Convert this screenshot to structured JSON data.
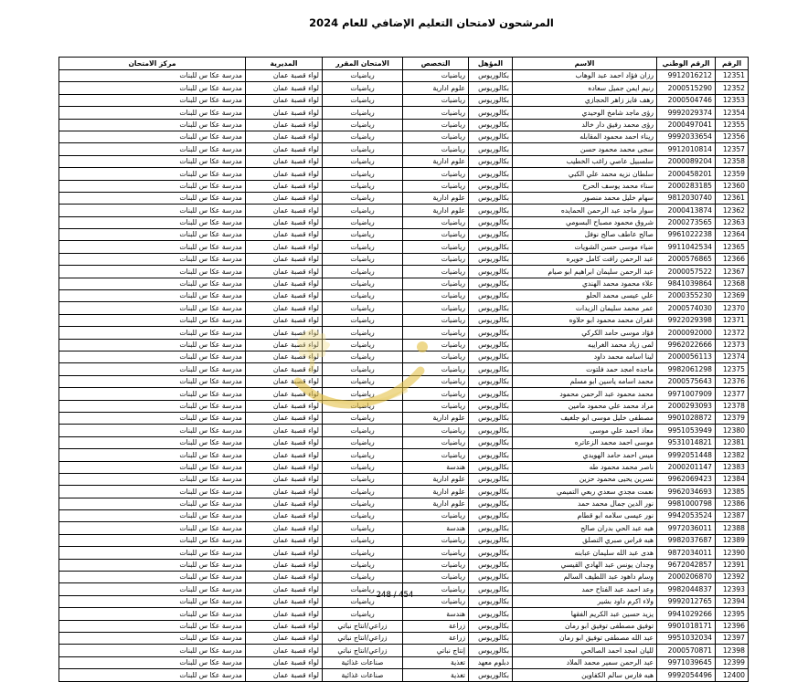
{
  "page": {
    "title": "المرشحون لامتحان التعليم الإضافي للعام 2024",
    "page_number": "248 / 454"
  },
  "watermark": {
    "name": "ammon-stamp-watermark",
    "color": "#e3c042"
  },
  "table": {
    "columns": [
      {
        "key": "serial",
        "label": "الرقم"
      },
      {
        "key": "national_id",
        "label": "الرقم الوطني"
      },
      {
        "key": "name",
        "label": "الاسم"
      },
      {
        "key": "qualification",
        "label": "المؤهل"
      },
      {
        "key": "specialization",
        "label": "التخصص"
      },
      {
        "key": "scheduled_exam",
        "label": "الامتحان المقرر"
      },
      {
        "key": "directorate",
        "label": "المديرية"
      },
      {
        "key": "exam_center",
        "label": "مركز الامتحان"
      }
    ],
    "rows": [
      [
        "12351",
        "9912016212",
        "رزان فؤاد احمد عبد الوهاب",
        "بكالوريوس",
        "رياضيات",
        "رياضيات",
        "لواء قصبة عمان",
        "مدرسة عكا س للبنات"
      ],
      [
        "12352",
        "2000515290",
        "رنيم ايمن جميل سعاده",
        "بكالوريوس",
        "علوم ادارية",
        "رياضيات",
        "لواء قصبة عمان",
        "مدرسة عكا س للبنات"
      ],
      [
        "12353",
        "2000504746",
        "رهف فايز زاهر الحجازي",
        "بكالوريوس",
        "رياضيات",
        "رياضيات",
        "لواء قصبة عمان",
        "مدرسة عكا س للبنات"
      ],
      [
        "12354",
        "9992029374",
        "رؤى ماجد شامخ الوحيدي",
        "بكالوريوس",
        "رياضيات",
        "رياضيات",
        "لواء قصبة عمان",
        "مدرسة عكا س للبنات"
      ],
      [
        "12355",
        "2000497041",
        "رؤى محمد رفيق دار خالد",
        "بكالوريوس",
        "رياضيات",
        "رياضيات",
        "لواء قصبة عمان",
        "مدرسة عكا س للبنات"
      ],
      [
        "12356",
        "9992033654",
        "ريناء احمد محمود المقابله",
        "بكالوريوس",
        "رياضيات",
        "رياضيات",
        "لواء قصبة عمان",
        "مدرسة عكا س للبنات"
      ],
      [
        "12357",
        "9912010814",
        "سجى محمد محمود حسن",
        "بكالوريوس",
        "رياضيات",
        "رياضيات",
        "لواء قصبة عمان",
        "مدرسة عكا س للبنات"
      ],
      [
        "12358",
        "2000089204",
        "سلسبيل عاصي راغب الخطيب",
        "بكالوريوس",
        "علوم ادارية",
        "رياضيات",
        "لواء قصبة عمان",
        "مدرسة عكا س للبنات"
      ],
      [
        "12359",
        "2000458201",
        "سلطان نزيه محمد علي الكبي",
        "بكالوريوس",
        "رياضيات",
        "رياضيات",
        "لواء قصبة عمان",
        "مدرسة عكا س للبنات"
      ],
      [
        "12360",
        "2000283185",
        "سناء محمد يوسف الحرح",
        "بكالوريوس",
        "رياضيات",
        "رياضيات",
        "لواء قصبة عمان",
        "مدرسة عكا س للبنات"
      ],
      [
        "12361",
        "9812030740",
        "سهام خليل محمد منصور",
        "بكالوريوس",
        "علوم ادارية",
        "رياضيات",
        "لواء قصبة عمان",
        "مدرسة عكا س للبنات"
      ],
      [
        "12362",
        "2000413874",
        "سوار ماجد عبد الرحمن الحمايده",
        "بكالوريوس",
        "علوم ادارية",
        "رياضيات",
        "لواء قصبة عمان",
        "مدرسة عكا س للبنات"
      ],
      [
        "12363",
        "2000273565",
        "شروق محمود مصباح البسومي",
        "بكالوريوس",
        "رياضيات",
        "رياضيات",
        "لواء قصبة عمان",
        "مدرسة عكا س للبنات"
      ],
      [
        "12364",
        "9961022238",
        "صالح عاطف صالح نوفل",
        "بكالوريوس",
        "رياضيات",
        "رياضيات",
        "لواء قصبة عمان",
        "مدرسة عكا س للبنات"
      ],
      [
        "12365",
        "9911042534",
        "ضياء موسى حسن الشويات",
        "بكالوريوس",
        "رياضيات",
        "رياضيات",
        "لواء قصبة عمان",
        "مدرسة عكا س للبنات"
      ],
      [
        "12366",
        "2000576865",
        "عبد الرحمن رافت كامل خويره",
        "بكالوريوس",
        "رياضيات",
        "رياضيات",
        "لواء قصبة عمان",
        "مدرسة عكا س للبنات"
      ],
      [
        "12367",
        "2000057522",
        "عبد الرحمن سليمان ابراهيم ابو صيام",
        "بكالوريوس",
        "رياضيات",
        "رياضيات",
        "لواء قصبة عمان",
        "مدرسة عكا س للبنات"
      ],
      [
        "12368",
        "9841039864",
        "علاء محمود محمد الهندي",
        "بكالوريوس",
        "رياضيات",
        "رياضيات",
        "لواء قصبة عمان",
        "مدرسة عكا س للبنات"
      ],
      [
        "12369",
        "2000355230",
        "علي عيسى محمد الحلو",
        "بكالوريوس",
        "رياضيات",
        "رياضيات",
        "لواء قصبة عمان",
        "مدرسة عكا س للبنات"
      ],
      [
        "12370",
        "2000574030",
        "عمر محمد سليمان الزيدات",
        "بكالوريوس",
        "رياضيات",
        "رياضيات",
        "لواء قصبة عمان",
        "مدرسة عكا س للبنات"
      ],
      [
        "12371",
        "9922029398",
        "غفران محمد محمود ابو حلاوه",
        "بكالوريوس",
        "رياضيات",
        "رياضيات",
        "لواء قصبة عمان",
        "مدرسة عكا س للبنات"
      ],
      [
        "12372",
        "2000092000",
        "فؤاد موسى حامد الكركي",
        "بكالوريوس",
        "رياضيات",
        "رياضيات",
        "لواء قصبة عمان",
        "مدرسة عكا س للبنات"
      ],
      [
        "12373",
        "9962022666",
        "لمى زياد محمد الغرايبه",
        "بكالوريوس",
        "رياضيات",
        "رياضيات",
        "لواء قصبة عمان",
        "مدرسة عكا س للبنات"
      ],
      [
        "12374",
        "2000056113",
        "لينا اسامه محمد داود",
        "بكالوريوس",
        "رياضيات",
        "رياضيات",
        "لواء قصبة عمان",
        "مدرسة عكا س للبنات"
      ],
      [
        "12375",
        "9982061298",
        "ماجده امجد حمد فلتوت",
        "بكالوريوس",
        "رياضيات",
        "رياضيات",
        "لواء قصبة عمان",
        "مدرسة عكا س للبنات"
      ],
      [
        "12376",
        "2000575643",
        "محمد اسامه ياسين ابو مسلم",
        "بكالوريوس",
        "رياضيات",
        "رياضيات",
        "لواء قصبة عمان",
        "مدرسة عكا س للبنات"
      ],
      [
        "12377",
        "9971007909",
        "محمد محمود عبد الرحمن محمود",
        "بكالوريوس",
        "رياضيات",
        "رياضيات",
        "لواء قصبة عمان",
        "مدرسة عكا س للبنات"
      ],
      [
        "12378",
        "2000293093",
        "مراد محمد علي محمود مامين",
        "بكالوريوس",
        "رياضيات",
        "رياضيات",
        "لواء قصبة عمان",
        "مدرسة عكا س للبنات"
      ],
      [
        "12379",
        "9901028872",
        "مصطفى خليل موسى ابو جلغيف",
        "بكالوريوس",
        "علوم ادارية",
        "رياضيات",
        "لواء قصبة عمان",
        "مدرسة عكا س للبنات"
      ],
      [
        "12380",
        "9951053949",
        "معاذ احمد علي موسى",
        "بكالوريوس",
        "رياضيات",
        "رياضيات",
        "لواء قصبة عمان",
        "مدرسة عكا س للبنات"
      ],
      [
        "12381",
        "9531014821",
        "موسى احمد محمد الزعاتره",
        "بكالوريوس",
        "رياضيات",
        "رياضيات",
        "لواء قصبة عمان",
        "مدرسة عكا س للبنات"
      ],
      [
        "12382",
        "9992051448",
        "ميس احمد حامد الهويدي",
        "بكالوريوس",
        "رياضيات",
        "رياضيات",
        "لواء قصبة عمان",
        "مدرسة عكا س للبنات"
      ],
      [
        "12383",
        "2000201147",
        "ناصر محمد محمود طه",
        "بكالوريوس",
        "هندسة",
        "رياضيات",
        "لواء قصبة عمان",
        "مدرسة عكا س للبنات"
      ],
      [
        "12384",
        "9962069423",
        "نسرين يحيى محمود حزين",
        "بكالوريوس",
        "علوم ادارية",
        "رياضيات",
        "لواء قصبة عمان",
        "مدرسة عكا س للبنات"
      ],
      [
        "12385",
        "9962034693",
        "نعمت مجدي سعدي ربعي التميمي",
        "بكالوريوس",
        "علوم ادارية",
        "رياضيات",
        "لواء قصبة عمان",
        "مدرسة عكا س للبنات"
      ],
      [
        "12386",
        "9981000798",
        "نور الدين جمال محمد حمد",
        "بكالوريوس",
        "علوم ادارية",
        "رياضيات",
        "لواء قصبة عمان",
        "مدرسة عكا س للبنات"
      ],
      [
        "12387",
        "9942053524",
        "نور عيسى سلامه ابو قطام",
        "بكالوريوس",
        "رياضيات",
        "رياضيات",
        "لواء قصبة عمان",
        "مدرسة عكا س للبنات"
      ],
      [
        "12388",
        "9972036011",
        "هبه عبد الحي بدران صالح",
        "بكالوريوس",
        "هندسة",
        "رياضيات",
        "لواء قصبة عمان",
        "مدرسة عكا س للبنات"
      ],
      [
        "12389",
        "9982037687",
        "هبه فراس صبري التصلق",
        "بكالوريوس",
        "رياضيات",
        "رياضيات",
        "لواء قصبة عمان",
        "مدرسة عكا س للبنات"
      ],
      [
        "12390",
        "9872034011",
        "هدى عبد الله سليمان عبابنه",
        "بكالوريوس",
        "رياضيات",
        "رياضيات",
        "لواء قصبة عمان",
        "مدرسة عكا س للبنات"
      ],
      [
        "12391",
        "9672042857",
        "وجدان يونس عبد الهادي القيسي",
        "بكالوريوس",
        "رياضيات",
        "رياضيات",
        "لواء قصبة عمان",
        "مدرسة عكا س للبنات"
      ],
      [
        "12392",
        "2000206870",
        "وسام داهود عبد اللطيف السالم",
        "بكالوريوس",
        "رياضيات",
        "رياضيات",
        "لواء قصبة عمان",
        "مدرسة عكا س للبنات"
      ],
      [
        "12393",
        "9982044837",
        "وعد احمد عبد الفتاح حمد",
        "بكالوريوس",
        "رياضيات",
        "رياضيات",
        "لواء قصبة عمان",
        "مدرسة عكا س للبنات"
      ],
      [
        "12394",
        "9992012765",
        "ولاء اكرم داود بشير",
        "بكالوريوس",
        "رياضيات",
        "رياضيات",
        "لواء قصبة عمان",
        "مدرسة عكا س للبنات"
      ],
      [
        "12395",
        "9941029266",
        "يزيد حسين عبد الكريم الفقها",
        "بكالوريوس",
        "هندسة",
        "رياضيات",
        "لواء قصبة عمان",
        "مدرسة عكا س للبنات"
      ],
      [
        "12396",
        "9901018171",
        "توفيق مصطفى توفيق ابو رمان",
        "بكالوريوس",
        "زراعة",
        "زراعي/انتاج نباتي",
        "لواء قصبة عمان",
        "مدرسة عكا س للبنات"
      ],
      [
        "12397",
        "9951032034",
        "عبد الله مصطفى توفيق ابو رمان",
        "بكالوريوس",
        "زراعة",
        "زراعي/انتاج نباتي",
        "لواء قصبة عمان",
        "مدرسة عكا س للبنات"
      ],
      [
        "12398",
        "2000570871",
        "لليان امجد احمد الصالحي",
        "بكالوريوس",
        "إنتاج نباتي",
        "زراعي/انتاج نباتي",
        "لواء قصبة عمان",
        "مدرسة عكا س للبنات"
      ],
      [
        "12399",
        "9971039645",
        "عبد الرحمن سمير محمد الملاد",
        "دبلوم معهد",
        "تغذية",
        "صناعات غذائية",
        "لواء قصبة عمان",
        "مدرسة عكا س للبنات"
      ],
      [
        "12400",
        "9992054496",
        "هبه فارس سالم الكفاوين",
        "بكالوريوس",
        "تغذية",
        "صناعات غذائية",
        "لواء قصبة عمان",
        "مدرسة عكا س للبنات"
      ]
    ]
  }
}
